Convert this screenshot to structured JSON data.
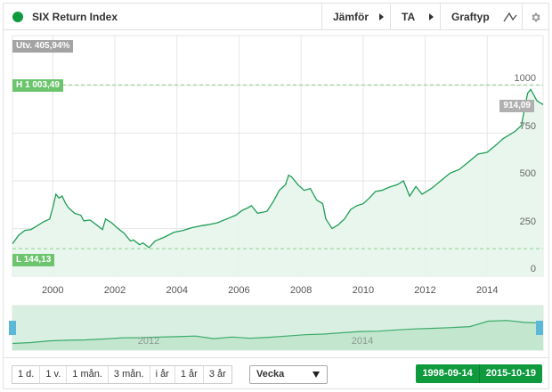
{
  "header": {
    "title": "SIX Return Index",
    "status_color": "#0e9a3d",
    "buttons": [
      {
        "label": "Jämför",
        "has_arrow": true
      },
      {
        "label": "TA",
        "has_arrow": true
      },
      {
        "label": "Graftyp",
        "icon": "line-chart-icon"
      }
    ],
    "settings_icon": "gear-icon"
  },
  "tags": {
    "change": "Utv. 405,94%",
    "high": "H 1 003,49",
    "low": "L 144,13",
    "last": "914,09"
  },
  "footer": {
    "periods": [
      "1 d.",
      "1 v.",
      "1 mån.",
      "3 mån.",
      "i år",
      "1 år",
      "3 år"
    ],
    "interval_select": "Vecka",
    "date_from": "1998-09-14",
    "date_to": "2015-10-19"
  },
  "navigator": {
    "labels": [
      "2012",
      "2014"
    ]
  },
  "chart_data": {
    "type": "area",
    "title": "SIX Return Index",
    "xlabel": "",
    "ylabel": "",
    "x_ticks": [
      "2000",
      "2002",
      "2004",
      "2006",
      "2008",
      "2010",
      "2012",
      "2014"
    ],
    "y_ticks": [
      0,
      250,
      500,
      750,
      1000
    ],
    "ylim": [
      0,
      1050
    ],
    "xlim": [
      1998.7,
      2015.8
    ],
    "grid": true,
    "line_color": "#1f9d55",
    "fill_color": "#e6f5eb",
    "high": 1003.49,
    "low": 144.13,
    "last": 914.09,
    "change_pct": 405.94,
    "series": [
      {
        "name": "SIX Return Index",
        "x": [
          1998.7,
          1998.9,
          1999.1,
          1999.3,
          1999.5,
          1999.7,
          1999.9,
          2000.0,
          2000.1,
          2000.2,
          2000.3,
          2000.4,
          2000.5,
          2000.7,
          2000.9,
          2001.0,
          2001.2,
          2001.4,
          2001.6,
          2001.7,
          2001.9,
          2002.1,
          2002.3,
          2002.5,
          2002.6,
          2002.8,
          2002.9,
          2003.1,
          2003.3,
          2003.6,
          2003.9,
          2004.2,
          2004.5,
          2004.8,
          2005.0,
          2005.3,
          2005.6,
          2005.9,
          2006.1,
          2006.3,
          2006.4,
          2006.6,
          2006.9,
          2007.1,
          2007.3,
          2007.5,
          2007.6,
          2007.7,
          2007.9,
          2008.1,
          2008.3,
          2008.5,
          2008.7,
          2008.8,
          2009.0,
          2009.2,
          2009.4,
          2009.6,
          2009.8,
          2010.0,
          2010.2,
          2010.4,
          2010.6,
          2010.9,
          2011.1,
          2011.3,
          2011.5,
          2011.7,
          2011.9,
          2012.2,
          2012.5,
          2012.8,
          2013.1,
          2013.4,
          2013.7,
          2014.0,
          2014.3,
          2014.5,
          2014.7,
          2014.9,
          2015.1,
          2015.3,
          2015.4,
          2015.6,
          2015.8
        ],
        "values": [
          170,
          215,
          240,
          245,
          265,
          285,
          300,
          360,
          430,
          410,
          420,
          385,
          360,
          330,
          320,
          290,
          295,
          270,
          245,
          300,
          280,
          250,
          225,
          185,
          190,
          165,
          175,
          150,
          185,
          205,
          230,
          240,
          255,
          265,
          270,
          280,
          300,
          320,
          345,
          360,
          370,
          330,
          340,
          390,
          450,
          480,
          530,
          520,
          480,
          450,
          460,
          400,
          380,
          300,
          250,
          270,
          300,
          350,
          370,
          380,
          410,
          445,
          450,
          470,
          480,
          500,
          420,
          470,
          430,
          460,
          500,
          540,
          560,
          600,
          640,
          650,
          690,
          720,
          740,
          760,
          790,
          960,
          980,
          920,
          900
        ]
      }
    ]
  }
}
